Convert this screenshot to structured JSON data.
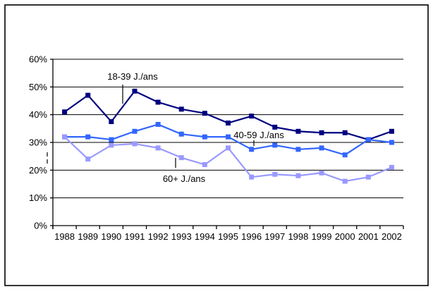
{
  "chart_data": {
    "type": "line",
    "title": "",
    "xlabel": "",
    "ylabel": "",
    "x": [
      "1988",
      "1989",
      "1990",
      "1991",
      "1992",
      "1993",
      "1994",
      "1995",
      "1996",
      "1997",
      "1998",
      "1999",
      "2000",
      "2001",
      "2002"
    ],
    "series": [
      {
        "name": "18-39 J./ans",
        "color": "#000080",
        "values": [
          41,
          47,
          37.5,
          48.5,
          44.5,
          42,
          40.5,
          37,
          39.5,
          35.5,
          34,
          33.5,
          33.5,
          31,
          34
        ]
      },
      {
        "name": "40-59 J./ans",
        "color": "#3366FF",
        "values": [
          32,
          32,
          31,
          34,
          36.5,
          33,
          32,
          32,
          27.5,
          29,
          27.5,
          28,
          25.5,
          31,
          30
        ]
      },
      {
        "name": "60+ J./ans",
        "color": "#9999FF",
        "values": [
          32,
          24,
          29,
          29.5,
          28,
          24.5,
          22,
          28,
          17.5,
          18.5,
          18,
          19,
          16,
          17.5,
          21
        ]
      }
    ],
    "ylim": [
      0,
      60
    ],
    "ytick_step": 10,
    "ytick_labels": [
      "0%",
      "10%",
      "20%",
      "30%",
      "40%",
      "50%",
      "60%"
    ],
    "grid": true,
    "legend_position": "none",
    "annotations": [
      {
        "text": "18-39 J./ans",
        "tx": 188,
        "ty": 113,
        "lx": 174,
        "ly1": 120,
        "ly2": 147
      },
      {
        "text": "40-59 J./ans",
        "tx": 367,
        "ty": 196,
        "lx": 360,
        "ly1": 199,
        "ly2": 207
      },
      {
        "text": "60+ J./ans",
        "tx": 261,
        "ty": 258,
        "lx": 249,
        "ly1": 224,
        "ly2": 238
      }
    ],
    "stray_mark": {
      "x": 67,
      "y1": 216,
      "y2": 232
    }
  },
  "frame": {
    "border_color": "#000000"
  }
}
